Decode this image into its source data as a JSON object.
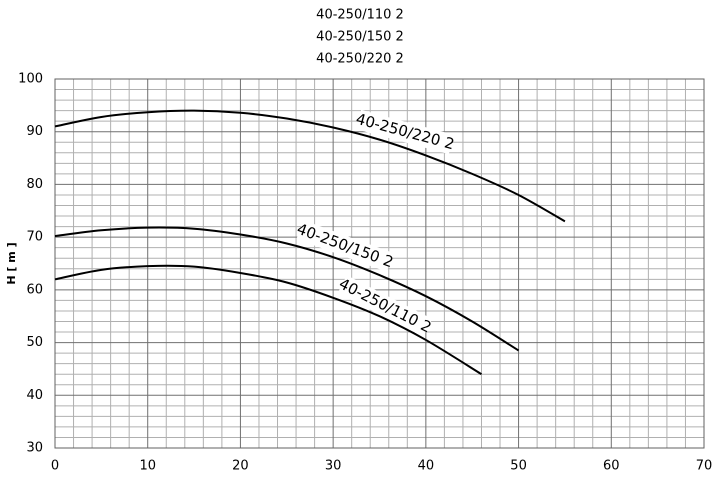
{
  "chart_data": {
    "type": "line",
    "y_label": "H [ m ]",
    "series": [
      {
        "name": "40-250/110 2",
        "color": "#000000",
        "x": [
          0,
          5,
          10,
          15,
          20,
          25,
          30,
          35,
          40,
          46
        ],
        "values": [
          62,
          63.8,
          64.5,
          64.4,
          63.2,
          61.4,
          58.5,
          55,
          50.5,
          44
        ]
      },
      {
        "name": "40-250/150 2",
        "color": "#000000",
        "x": [
          0,
          5,
          10,
          15,
          20,
          25,
          30,
          35,
          40,
          45,
          50
        ],
        "values": [
          70.2,
          71.3,
          71.8,
          71.6,
          70.5,
          68.8,
          66.2,
          62.8,
          58.8,
          54,
          48.5
        ]
      },
      {
        "name": "40-250/220 2",
        "color": "#000000",
        "x": [
          0,
          5,
          10,
          15,
          20,
          25,
          30,
          35,
          40,
          45,
          50,
          55
        ],
        "values": [
          91,
          92.8,
          93.7,
          94,
          93.6,
          92.5,
          90.8,
          88.5,
          85.5,
          82,
          78,
          73
        ]
      }
    ],
    "xlim": [
      0,
      70
    ],
    "xticks": [
      0,
      10,
      20,
      30,
      40,
      50,
      60,
      70
    ],
    "ylim": [
      30,
      100
    ],
    "yticks": [
      30,
      40,
      50,
      60,
      70,
      80,
      90,
      100
    ],
    "grid": true
  }
}
